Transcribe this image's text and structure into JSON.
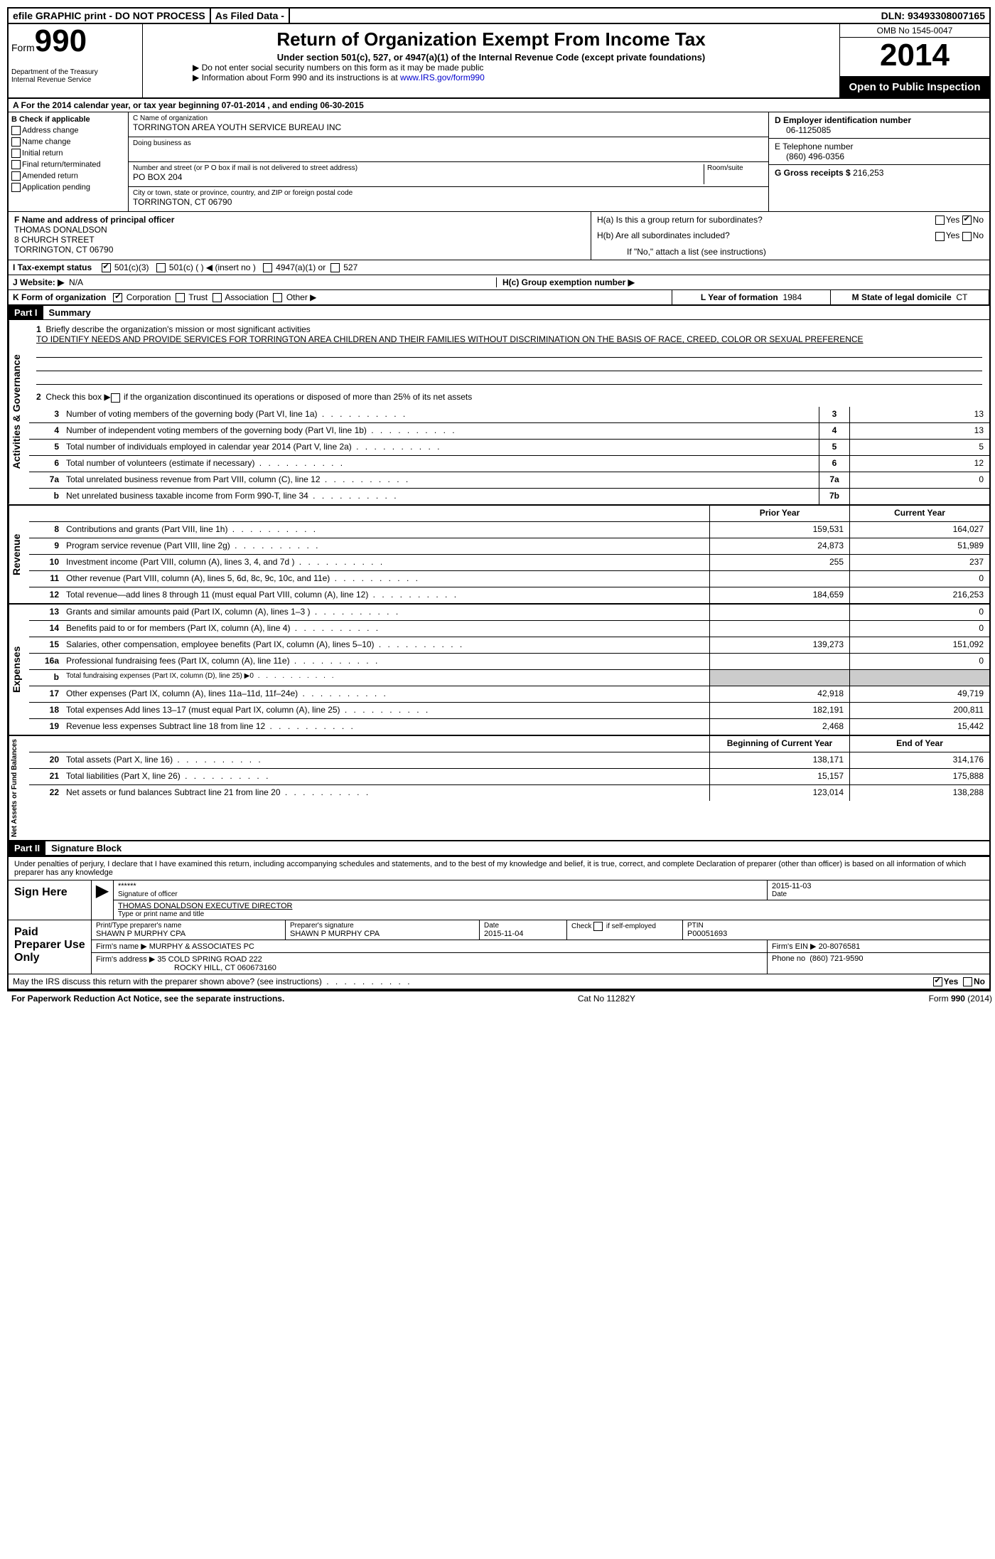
{
  "topbar": {
    "efile": "efile GRAPHIC print - DO NOT PROCESS",
    "asfiled": "As Filed Data -",
    "dln_label": "DLN:",
    "dln": "93493308007165"
  },
  "header": {
    "form_label": "Form",
    "form_num": "990",
    "dept": "Department of the Treasury\nInternal Revenue Service",
    "title": "Return of Organization Exempt From Income Tax",
    "subtitle": "Under section 501(c), 527, or 4947(a)(1) of the Internal Revenue Code (except private foundations)",
    "note1": "▶ Do not enter social security numbers on this form as it may be made public",
    "note2_pre": "▶ Information about Form 990 and its instructions is at ",
    "note2_link": "www.IRS.gov/form990",
    "omb": "OMB No 1545-0047",
    "year": "2014",
    "inspection": "Open to Public Inspection"
  },
  "row_a": "A  For the 2014 calendar year, or tax year beginning 07-01-2014     , and ending 06-30-2015",
  "section_b": {
    "label": "B  Check if applicable",
    "items": [
      "Address change",
      "Name change",
      "Initial return",
      "Final return/terminated",
      "Amended return",
      "Application pending"
    ]
  },
  "section_c": {
    "name_label": "C Name of organization",
    "name": "TORRINGTON AREA YOUTH SERVICE BUREAU INC",
    "dba_label": "Doing business as",
    "dba": "",
    "addr_label": "Number and street (or P O  box if mail is not delivered to street address)",
    "room_label": "Room/suite",
    "addr": "PO BOX 204",
    "city_label": "City or town, state or province, country, and ZIP or foreign postal code",
    "city": "TORRINGTON, CT  06790"
  },
  "section_d": {
    "ein_label": "D Employer identification number",
    "ein": "06-1125085",
    "phone_label": "E Telephone number",
    "phone": "(860) 496-0356",
    "gross_label": "G Gross receipts $",
    "gross": "216,253"
  },
  "section_f": {
    "label": "F  Name and address of principal officer",
    "name": "THOMAS DONALDSON",
    "street": "8 CHURCH STREET",
    "city": "TORRINGTON, CT  06790"
  },
  "section_h": {
    "ha": "H(a)  Is this a group return for subordinates?",
    "hb": "H(b)  Are all subordinates included?",
    "hb_note": "If \"No,\" attach a list  (see instructions)",
    "hc": "H(c)  Group exemption number ▶",
    "yes": "Yes",
    "no": "No"
  },
  "row_i": {
    "label": "I   Tax-exempt status",
    "opts": [
      "501(c)(3)",
      "501(c) (  ) ◀ (insert no )",
      "4947(a)(1) or",
      "527"
    ]
  },
  "row_j": {
    "label": "J   Website: ▶",
    "val": "N/A"
  },
  "row_k": {
    "label": "K Form of organization",
    "opts": [
      "Corporation",
      "Trust",
      "Association",
      "Other ▶"
    ],
    "l_label": "L Year of formation",
    "l_val": "1984",
    "m_label": "M State of legal domicile",
    "m_val": "CT"
  },
  "part1": {
    "header": "Part I",
    "title": "Summary",
    "line1_label": "Briefly describe the organization's mission or most significant activities",
    "mission": "TO IDENTIFY NEEDS AND PROVIDE SERVICES FOR TORRINGTON AREA CHILDREN AND THEIR FAMILIES WITHOUT DISCRIMINATION ON THE BASIS OF RACE, CREED, COLOR OR SEXUAL PREFERENCE",
    "line2": "Check this box ▶     if the organization discontinued its operations or disposed of more than 25% of its net assets",
    "governance_label": "Activities & Governance",
    "lines_gov": [
      {
        "n": "3",
        "t": "Number of voting members of the governing body (Part VI, line 1a)",
        "box": "3",
        "v": "13"
      },
      {
        "n": "4",
        "t": "Number of independent voting members of the governing body (Part VI, line 1b)",
        "box": "4",
        "v": "13"
      },
      {
        "n": "5",
        "t": "Total number of individuals employed in calendar year 2014 (Part V, line 2a)",
        "box": "5",
        "v": "5"
      },
      {
        "n": "6",
        "t": "Total number of volunteers (estimate if necessary)",
        "box": "6",
        "v": "12"
      },
      {
        "n": "7a",
        "t": "Total unrelated business revenue from Part VIII, column (C), line 12",
        "box": "7a",
        "v": "0"
      },
      {
        "n": "b",
        "t": "Net unrelated business taxable income from Form 990-T, line 34",
        "box": "7b",
        "v": ""
      }
    ],
    "col_prior": "Prior Year",
    "col_current": "Current Year",
    "revenue_label": "Revenue",
    "lines_rev": [
      {
        "n": "8",
        "t": "Contributions and grants (Part VIII, line 1h)",
        "p": "159,531",
        "c": "164,027"
      },
      {
        "n": "9",
        "t": "Program service revenue (Part VIII, line 2g)",
        "p": "24,873",
        "c": "51,989"
      },
      {
        "n": "10",
        "t": "Investment income (Part VIII, column (A), lines 3, 4, and 7d )",
        "p": "255",
        "c": "237"
      },
      {
        "n": "11",
        "t": "Other revenue (Part VIII, column (A), lines 5, 6d, 8c, 9c, 10c, and 11e)",
        "p": "",
        "c": "0"
      },
      {
        "n": "12",
        "t": "Total revenue—add lines 8 through 11 (must equal Part VIII, column (A), line 12)",
        "p": "184,659",
        "c": "216,253"
      }
    ],
    "expenses_label": "Expenses",
    "lines_exp": [
      {
        "n": "13",
        "t": "Grants and similar amounts paid (Part IX, column (A), lines 1–3 )",
        "p": "",
        "c": "0"
      },
      {
        "n": "14",
        "t": "Benefits paid to or for members (Part IX, column (A), line 4)",
        "p": "",
        "c": "0"
      },
      {
        "n": "15",
        "t": "Salaries, other compensation, employee benefits (Part IX, column (A), lines 5–10)",
        "p": "139,273",
        "c": "151,092"
      },
      {
        "n": "16a",
        "t": "Professional fundraising fees (Part IX, column (A), line 11e)",
        "p": "",
        "c": "0"
      },
      {
        "n": "b",
        "t": "Total fundraising expenses (Part IX, column (D), line 25) ▶0",
        "p": "shaded",
        "c": "shaded"
      },
      {
        "n": "17",
        "t": "Other expenses (Part IX, column (A), lines 11a–11d, 11f–24e)",
        "p": "42,918",
        "c": "49,719"
      },
      {
        "n": "18",
        "t": "Total expenses  Add lines 13–17 (must equal Part IX, column (A), line 25)",
        "p": "182,191",
        "c": "200,811"
      },
      {
        "n": "19",
        "t": "Revenue less expenses  Subtract line 18 from line 12",
        "p": "2,468",
        "c": "15,442"
      }
    ],
    "net_label": "Net Assets or Fund Balances",
    "col_begin": "Beginning of Current Year",
    "col_end": "End of Year",
    "lines_net": [
      {
        "n": "20",
        "t": "Total assets (Part X, line 16)",
        "p": "138,171",
        "c": "314,176"
      },
      {
        "n": "21",
        "t": "Total liabilities (Part X, line 26)",
        "p": "15,157",
        "c": "175,888"
      },
      {
        "n": "22",
        "t": "Net assets or fund balances  Subtract line 21 from line 20",
        "p": "123,014",
        "c": "138,288"
      }
    ]
  },
  "part2": {
    "header": "Part II",
    "title": "Signature Block",
    "declaration": "Under penalties of perjury, I declare that I have examined this return, including accompanying schedules and statements, and to the best of my knowledge and belief, it is true, correct, and complete  Declaration of preparer (other than officer) is based on all information of which preparer has any knowledge",
    "sign_here": "Sign Here",
    "sig_stars": "******",
    "sig_of_officer": "Signature of officer",
    "sig_date": "2015-11-03",
    "date_label": "Date",
    "officer_name": "THOMAS DONALDSON EXECUTIVE DIRECTOR",
    "type_name_label": "Type or print name and title",
    "paid_label": "Paid Preparer Use Only",
    "prep_name_label": "Print/Type preparer's name",
    "prep_name": "SHAWN P MURPHY CPA",
    "prep_sig_label": "Preparer's signature",
    "prep_sig": "SHAWN P MURPHY CPA",
    "prep_date_label": "Date",
    "prep_date": "2015-11-04",
    "check_self": "Check      if self-employed",
    "ptin_label": "PTIN",
    "ptin": "P00051693",
    "firm_name_label": "Firm's name    ▶",
    "firm_name": "MURPHY & ASSOCIATES PC",
    "firm_ein_label": "Firm's EIN ▶",
    "firm_ein": "20-8076581",
    "firm_addr_label": "Firm's address ▶",
    "firm_addr": "35 COLD SPRING ROAD 222",
    "firm_city": "ROCKY HILL, CT  060673160",
    "firm_phone_label": "Phone no",
    "firm_phone": "(860) 721-9590",
    "discuss": "May the IRS discuss this return with the preparer shown above? (see instructions)",
    "yes": "Yes",
    "no": "No"
  },
  "footer": {
    "paperwork": "For Paperwork Reduction Act Notice, see the separate instructions.",
    "cat": "Cat No 11282Y",
    "form": "Form 990 (2014)"
  }
}
